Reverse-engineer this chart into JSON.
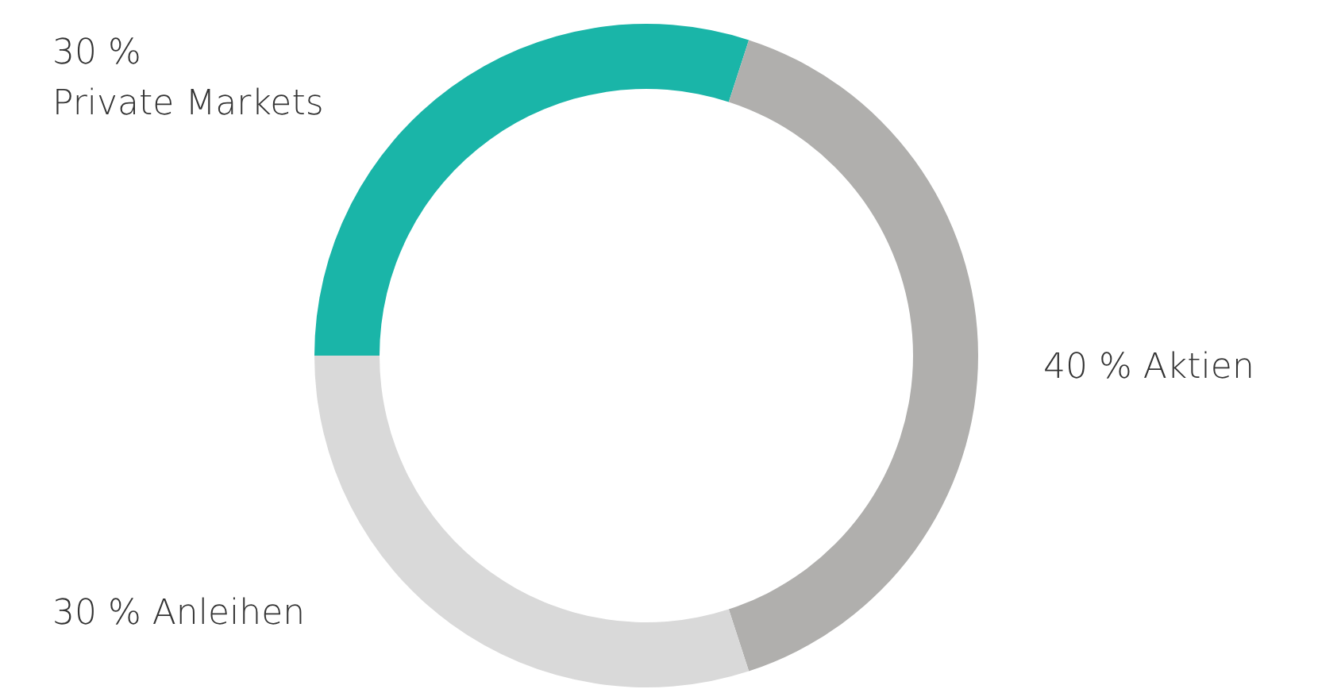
{
  "chart_data": {
    "type": "donut",
    "categories": [
      "Private Markets",
      "Aktien",
      "Anleihen"
    ],
    "values": [
      30,
      40,
      30
    ],
    "value_labels": [
      "30 %",
      "40 %",
      "30 %"
    ],
    "colors": [
      "#1ab5a8",
      "#b0afad",
      "#d9d9d9"
    ],
    "legend": false
  }
}
